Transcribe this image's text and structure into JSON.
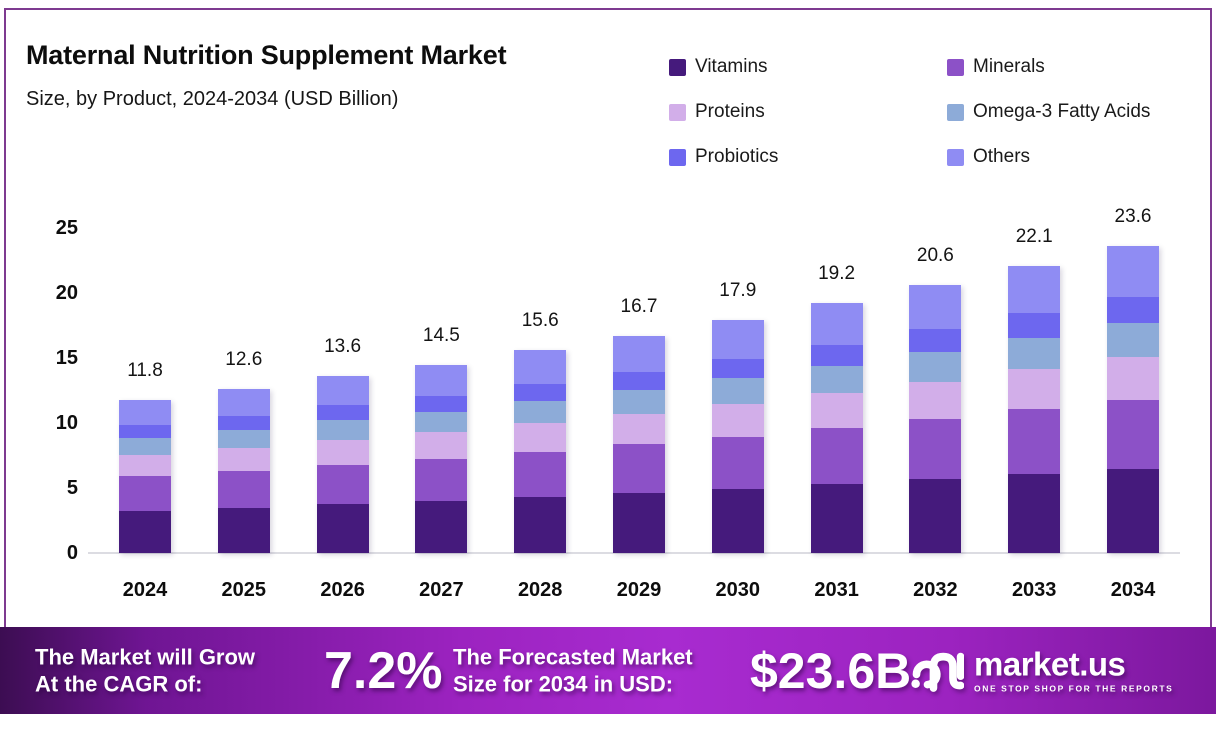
{
  "chart_data": {
    "type": "bar",
    "stacked": true,
    "title": "Maternal Nutrition Supplement Market",
    "subtitle": "Size, by Product, 2024-2034 (USD Billion)",
    "categories": [
      "2024",
      "2025",
      "2026",
      "2027",
      "2028",
      "2029",
      "2030",
      "2031",
      "2032",
      "2033",
      "2034"
    ],
    "totals": [
      11.8,
      12.6,
      13.6,
      14.5,
      15.6,
      16.7,
      17.9,
      19.2,
      20.6,
      22.1,
      23.6
    ],
    "series": [
      {
        "name": "Vitamins",
        "color": "#451a7c",
        "values": [
          3.25,
          3.47,
          3.74,
          3.99,
          4.29,
          4.59,
          4.92,
          5.28,
          5.67,
          6.08,
          6.49
        ]
      },
      {
        "name": "Minerals",
        "color": "#8c51c7",
        "values": [
          2.66,
          2.84,
          3.06,
          3.26,
          3.51,
          3.76,
          4.03,
          4.32,
          4.64,
          4.97,
          5.31
        ]
      },
      {
        "name": "Proteins",
        "color": "#d2aee9",
        "values": [
          1.65,
          1.76,
          1.9,
          2.03,
          2.18,
          2.34,
          2.51,
          2.69,
          2.88,
          3.09,
          3.3
        ]
      },
      {
        "name": "Omega-3 Fatty Acids",
        "color": "#8dabd8",
        "values": [
          1.3,
          1.39,
          1.5,
          1.6,
          1.72,
          1.84,
          1.97,
          2.11,
          2.27,
          2.43,
          2.6
        ]
      },
      {
        "name": "Probiotics",
        "color": "#6d67ef",
        "values": [
          1.0,
          1.07,
          1.16,
          1.23,
          1.33,
          1.42,
          1.52,
          1.63,
          1.75,
          1.88,
          2.01
        ]
      },
      {
        "name": "Others",
        "color": "#8f8cf3",
        "values": [
          1.95,
          2.08,
          2.24,
          2.39,
          2.57,
          2.76,
          2.95,
          3.17,
          3.4,
          3.65,
          3.89
        ]
      }
    ],
    "ylim": [
      0,
      25
    ],
    "yticks": [
      0,
      5,
      10,
      15,
      20,
      25
    ],
    "grid": false,
    "legend_position": "top-right",
    "value_labels": "totals shown above each bar"
  },
  "banner": {
    "cagr_label_line1": "The Market will Grow",
    "cagr_label_line2": "At the CAGR of:",
    "cagr_value": "7.2%",
    "forecast_label_line1": "The Forecasted Market",
    "forecast_label_line2": "Size for 2034 in USD:",
    "forecast_value": "$23.6B",
    "brand_name": "market.us",
    "brand_tagline": "ONE STOP SHOP FOR THE REPORTS"
  },
  "colors": {
    "card_border": "#7e3a90",
    "banner_gradient_dark": "#3c0d52",
    "banner_gradient_bright": "#a82bd0",
    "baseline": "#dcdce2",
    "text": "#0d0d0d"
  }
}
